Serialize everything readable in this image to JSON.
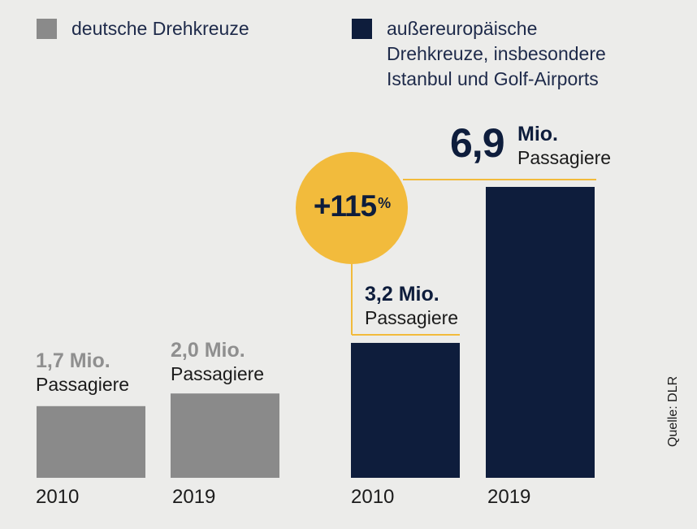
{
  "colors": {
    "background": "#ececea",
    "gray_bar": "#8a8a8a",
    "gray_text": "#8f8f8f",
    "navy": "#0e1d3c",
    "yellow": "#f2bb3c",
    "dark_text": "#1b1b1b"
  },
  "legend": [
    {
      "label_lines": [
        "deutsche Drehkreuze"
      ],
      "color": "#8a8a8a"
    },
    {
      "label_lines": [
        "außereuropäische",
        "Drehkreuze, insbesondere",
        "Istanbul und Golf-Airports"
      ],
      "color": "#0e1d3c"
    }
  ],
  "value_labels": {
    "g2010": {
      "number": "1,7 Mio.",
      "unit": "Passagiere"
    },
    "g2019": {
      "number": "2,0 Mio.",
      "unit": "Passagiere"
    },
    "n2010": {
      "number": "3,2 Mio.",
      "unit": "Passagiere"
    },
    "n2019": {
      "number": "6,9",
      "mio": "Mio.",
      "unit": "Passagiere"
    }
  },
  "growth": {
    "value": "+115",
    "suffix": "%"
  },
  "source": "Quelle: DLR",
  "chart_data": {
    "type": "bar",
    "title": "",
    "groups": [
      {
        "name": "deutsche Drehkreuze",
        "categories": [
          "2010",
          "2019"
        ],
        "values": [
          1.7,
          2.0
        ],
        "color": "#8a8a8a"
      },
      {
        "name": "außereuropäische Drehkreuze, insbesondere Istanbul und Golf-Airports",
        "categories": [
          "2010",
          "2019"
        ],
        "values": [
          3.2,
          6.9
        ],
        "color": "#0e1d3c"
      }
    ],
    "unit": "Mio. Passagiere",
    "annotation": "+115 %",
    "grid": false,
    "legend_position": "top"
  }
}
